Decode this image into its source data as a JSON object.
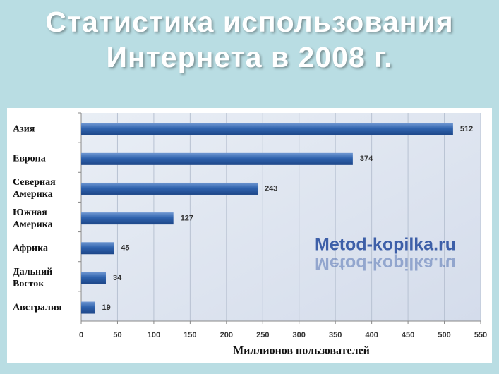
{
  "chart_data": {
    "type": "bar",
    "orientation": "horizontal",
    "title": "Статистика использования Интернета в 2008 г.",
    "x_label": "Миллионов пользователей",
    "categories": [
      "Азия",
      "Европа",
      "Северная Америка",
      "Южная Америка",
      "Африка",
      "Дальний Восток",
      "Австралия"
    ],
    "values": [
      512,
      374,
      243,
      127,
      45,
      34,
      19
    ],
    "color": "#2f62ad",
    "xlim": [
      0,
      550
    ],
    "xticks": [
      0,
      50,
      100,
      150,
      200,
      250,
      300,
      350,
      400,
      450,
      500,
      550
    ],
    "grid": true,
    "watermark": "Metod-kopilka.ru"
  }
}
